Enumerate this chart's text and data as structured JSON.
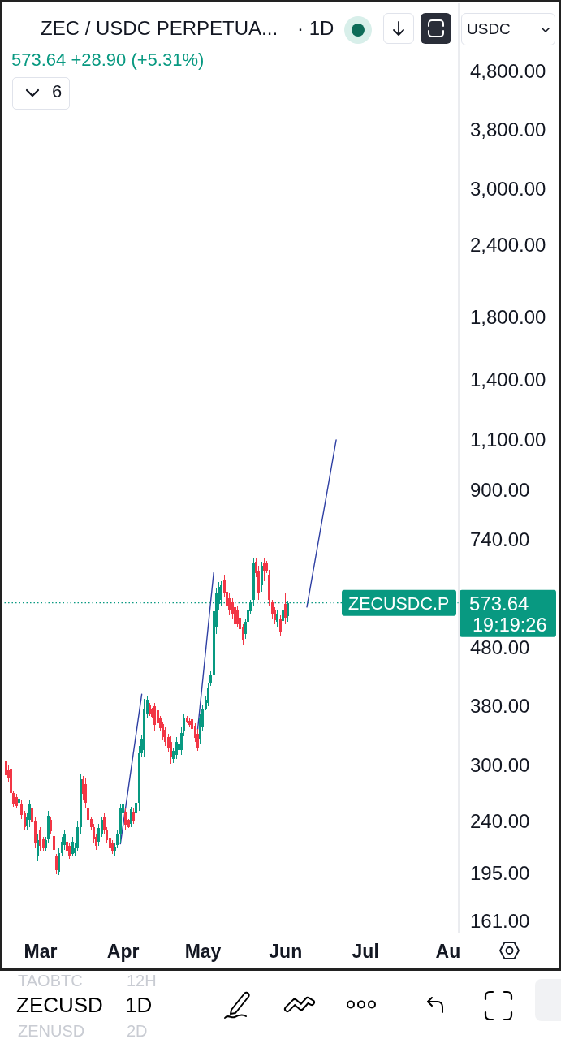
{
  "chart_data": {
    "type": "candlestick",
    "title": "ZEC / USDC PERPETUA...",
    "subtitle": "573.64 +28.90 (+5.31%)",
    "annotations": [
      "· 1D",
      "USDC",
      "6",
      "573.64",
      "19:19:26",
      "TAOBTC",
      "12H",
      "ZECUSD",
      "1D",
      "ZENUSD",
      "2D"
    ],
    "x": [
      "--02-16",
      "--02-17",
      "--02-18",
      "--02-19",
      "--02-20",
      "--02-21",
      "--02-22",
      "--02-23",
      "--02-24",
      "--02-25",
      "--02-26",
      "--02-27",
      "--02-28",
      "--03-01",
      "--03-02",
      "--03-03",
      "--03-04",
      "--03-05",
      "--03-06",
      "--03-07",
      "--03-08",
      "--03-09",
      "--03-10",
      "--03-11",
      "--03-12",
      "--03-13",
      "--03-14",
      "--03-15",
      "--03-16",
      "--03-17",
      "--03-18",
      "--03-19",
      "--03-20",
      "--03-21",
      "--03-22",
      "--03-23",
      "--03-24",
      "--03-25",
      "--03-26",
      "--03-27",
      "--03-28",
      "--03-29",
      "--03-30",
      "--03-31",
      "--04-01",
      "--04-02",
      "--04-03",
      "--04-04",
      "--04-05",
      "--04-06",
      "--04-07",
      "--04-08",
      "--04-09",
      "--04-10",
      "--04-11",
      "--04-12",
      "--04-13",
      "--04-14",
      "--04-15",
      "--04-16",
      "--04-17",
      "--04-18",
      "--04-19",
      "--04-20",
      "--04-21",
      "--04-22",
      "--04-23",
      "--04-24",
      "--04-25",
      "--04-26",
      "--04-27",
      "--04-28",
      "--04-29",
      "--04-30",
      "--05-01",
      "--05-02",
      "--05-03",
      "--05-04",
      "--05-05",
      "--05-06",
      "--05-07",
      "--05-08",
      "--05-09",
      "--05-10",
      "--05-11",
      "--05-12",
      "--05-13",
      "--05-14",
      "--05-15",
      "--05-16",
      "--05-17",
      "--05-18",
      "--05-19",
      "--05-20",
      "--05-21",
      "--05-22",
      "--05-23",
      "--05-24",
      "--05-25",
      "--05-26",
      "--05-27",
      "--05-28",
      "--05-29",
      "--05-30",
      "--05-31",
      "--06-01",
      "--06-02"
    ],
    "ohlc": [
      [
        304,
        311,
        282,
        288
      ],
      [
        294,
        299,
        280,
        285
      ],
      [
        296,
        304,
        264,
        268
      ],
      [
        268,
        271,
        254,
        257
      ],
      [
        264,
        267,
        253,
        255
      ],
      [
        258,
        264,
        256,
        262
      ],
      [
        257,
        261,
        242,
        246
      ],
      [
        247,
        250,
        231,
        234
      ],
      [
        235,
        248,
        232,
        244
      ],
      [
        241,
        261,
        234,
        256
      ],
      [
        253,
        257,
        234,
        239
      ],
      [
        240,
        244,
        215,
        220
      ],
      [
        209,
        227,
        204,
        222
      ],
      [
        231,
        234,
        213,
        217
      ],
      [
        223,
        225,
        213,
        215
      ],
      [
        215,
        225,
        213,
        222
      ],
      [
        223,
        250,
        220,
        245
      ],
      [
        241,
        244,
        227,
        230
      ],
      [
        226,
        229,
        210,
        214
      ],
      [
        208,
        210,
        194,
        197
      ],
      [
        196,
        215,
        193,
        211
      ],
      [
        211,
        225,
        208,
        221
      ],
      [
        218,
        231,
        214,
        227
      ],
      [
        221,
        223,
        210,
        213
      ],
      [
        217,
        220,
        206,
        209
      ],
      [
        210,
        225,
        208,
        221
      ],
      [
        211,
        220,
        209,
        215
      ],
      [
        215,
        240,
        213,
        234
      ],
      [
        234,
        289,
        228,
        283
      ],
      [
        283,
        287,
        261,
        267
      ],
      [
        278,
        285,
        253,
        258
      ],
      [
        253,
        256,
        237,
        241
      ],
      [
        242,
        244,
        232,
        234
      ],
      [
        234,
        237,
        220,
        223
      ],
      [
        225,
        227,
        214,
        217
      ],
      [
        221,
        237,
        217,
        233
      ],
      [
        228,
        244,
        225,
        241
      ],
      [
        244,
        248,
        227,
        231
      ],
      [
        231,
        234,
        220,
        222
      ],
      [
        224,
        227,
        213,
        215
      ],
      [
        220,
        222,
        210,
        213
      ],
      [
        212,
        220,
        209,
        216
      ],
      [
        218,
        232,
        215,
        228
      ],
      [
        227,
        257,
        220,
        252
      ],
      [
        248,
        258,
        244,
        256
      ],
      [
        249,
        253,
        232,
        236
      ],
      [
        241,
        242,
        233,
        234
      ],
      [
        237,
        254,
        234,
        251
      ],
      [
        249,
        252,
        237,
        240
      ],
      [
        248,
        261,
        246,
        258
      ],
      [
        258,
        324,
        250,
        314
      ],
      [
        314,
        338,
        309,
        333
      ],
      [
        319,
        391,
        309,
        375
      ],
      [
        369,
        394,
        363,
        389
      ],
      [
        381,
        384,
        365,
        369
      ],
      [
        374,
        377,
        361,
        364
      ],
      [
        379,
        385,
        344,
        352
      ],
      [
        373,
        379,
        349,
        355
      ],
      [
        362,
        365,
        344,
        348
      ],
      [
        353,
        357,
        331,
        336
      ],
      [
        345,
        349,
        324,
        329
      ],
      [
        335,
        340,
        316,
        321
      ],
      [
        329,
        337,
        301,
        309
      ],
      [
        307,
        322,
        302,
        317
      ],
      [
        312,
        335,
        307,
        329
      ],
      [
        318,
        331,
        314,
        327
      ],
      [
        319,
        349,
        312,
        341
      ],
      [
        343,
        367,
        337,
        361
      ],
      [
        363,
        365,
        354,
        356
      ],
      [
        358,
        361,
        349,
        352
      ],
      [
        360,
        363,
        343,
        346
      ],
      [
        350,
        355,
        329,
        334
      ],
      [
        340,
        346,
        317,
        322
      ],
      [
        333,
        369,
        327,
        361
      ],
      [
        349,
        381,
        344,
        374
      ],
      [
        376,
        394,
        373,
        389
      ],
      [
        385,
        416,
        379,
        409
      ],
      [
        416,
        437,
        411,
        431
      ],
      [
        431,
        568,
        416,
        554
      ],
      [
        519,
        610,
        506,
        597
      ],
      [
        572,
        624,
        557,
        612
      ],
      [
        581,
        626,
        568,
        616
      ],
      [
        630,
        641,
        587,
        597
      ],
      [
        600,
        614,
        554,
        566
      ],
      [
        585,
        595,
        545,
        557
      ],
      [
        575,
        585,
        539,
        548
      ],
      [
        563,
        575,
        514,
        527
      ],
      [
        559,
        568,
        519,
        527
      ],
      [
        541,
        550,
        510,
        517
      ],
      [
        519,
        527,
        486,
        494
      ],
      [
        506,
        539,
        497,
        531
      ],
      [
        532,
        568,
        524,
        559
      ],
      [
        554,
        581,
        548,
        574
      ],
      [
        581,
        688,
        568,
        673
      ],
      [
        675,
        684,
        635,
        645
      ],
      [
        651,
        666,
        581,
        595
      ],
      [
        616,
        677,
        600,
        666
      ],
      [
        673,
        684,
        626,
        651
      ],
      [
        673,
        679,
        647,
        653
      ],
      [
        641,
        655,
        568,
        581
      ],
      [
        574,
        581,
        539,
        548
      ],
      [
        557,
        563,
        527,
        536
      ],
      [
        531,
        557,
        522,
        550
      ],
      [
        538,
        545,
        502,
        510
      ],
      [
        534,
        568,
        527,
        559
      ],
      [
        572,
        595,
        527,
        541
      ],
      [
        544.74,
        577,
        531,
        573.64
      ]
    ],
    "colors": [
      "#f23645",
      "#f23645",
      "#f23645",
      "#f23645",
      "#f23645",
      "#089981",
      "#f23645",
      "#f23645",
      "#089981",
      "#089981",
      "#f23645",
      "#f23645",
      "#089981",
      "#f23645",
      "#f23645",
      "#089981",
      "#089981",
      "#f23645",
      "#f23645",
      "#f23645",
      "#089981",
      "#089981",
      "#089981",
      "#f23645",
      "#f23645",
      "#089981",
      "#089981",
      "#089981",
      "#089981",
      "#f23645",
      "#f23645",
      "#f23645",
      "#f23645",
      "#f23645",
      "#f23645",
      "#089981",
      "#089981",
      "#f23645",
      "#f23645",
      "#f23645",
      "#f23645",
      "#089981",
      "#089981",
      "#089981",
      "#089981",
      "#f23645",
      "#f23645",
      "#089981",
      "#f23645",
      "#089981",
      "#089981",
      "#089981",
      "#089981",
      "#089981",
      "#f23645",
      "#f23645",
      "#f23645",
      "#f23645",
      "#f23645",
      "#f23645",
      "#f23645",
      "#f23645",
      "#f23645",
      "#089981",
      "#089981",
      "#089981",
      "#089981",
      "#089981",
      "#f23645",
      "#f23645",
      "#f23645",
      "#f23645",
      "#f23645",
      "#089981",
      "#089981",
      "#089981",
      "#089981",
      "#089981",
      "#089981",
      "#089981",
      "#089981",
      "#089981",
      "#f23645",
      "#f23645",
      "#f23645",
      "#f23645",
      "#f23645",
      "#f23645",
      "#f23645",
      "#f23645",
      "#089981",
      "#089981",
      "#089981",
      "#089981",
      "#f23645",
      "#f23645",
      "#089981",
      "#f23645",
      "#f23645",
      "#f23645",
      "#f23645",
      "#f23645",
      "#089981",
      "#f23645",
      "#089981",
      "#f23645",
      "#089981"
    ],
    "series": [
      {
        "type": "line",
        "color": "#2e3fa3",
        "x": [
          "--03-31",
          "--04-08"
        ],
        "values": [
          219,
          398
        ]
      },
      {
        "type": "line",
        "color": "#2e3fa3",
        "x": [
          "--04-29",
          "--05-05"
        ],
        "values": [
          346,
          647
        ]
      },
      {
        "type": "line",
        "color": "#2e3fa3",
        "x": [
          "--06-09",
          "--06-20"
        ],
        "values": [
          564,
          1100
        ]
      }
    ],
    "ref_lines": [
      {
        "axis": "y",
        "value": 573.64,
        "label": "ZECUSDC.P",
        "color": "#089981",
        "line_style": "dotted"
      }
    ],
    "log": true,
    "xlim": [
      "--02-15",
      "--08-05"
    ],
    "xticks": [
      {
        "value": "--03-01",
        "label": "Mar"
      },
      {
        "value": "--04-01",
        "label": "Apr"
      },
      {
        "value": "--05-01",
        "label": "May"
      },
      {
        "value": "--06-01",
        "label": "Jun"
      },
      {
        "value": "--07-01",
        "label": "Jul"
      },
      {
        "value": "--08-01",
        "label": "Au"
      }
    ],
    "ylim": [
      153,
      6300
    ],
    "yticks": [
      {
        "value": 4800,
        "label": "4,800.00"
      },
      {
        "value": 3800,
        "label": "3,800.00"
      },
      {
        "value": 3000,
        "label": "3,000.00"
      },
      {
        "value": 2400,
        "label": "2,400.00"
      },
      {
        "value": 1800,
        "label": "1,800.00"
      },
      {
        "value": 1400,
        "label": "1,400.00"
      },
      {
        "value": 1100,
        "label": "1,100.00"
      },
      {
        "value": 900,
        "label": "900.00"
      },
      {
        "value": 740,
        "label": "740.00"
      },
      {
        "value": 480,
        "label": "480.00"
      },
      {
        "value": 380,
        "label": "380.00"
      },
      {
        "value": 300,
        "label": "300.00"
      },
      {
        "value": 240,
        "label": "240.00"
      },
      {
        "value": 195,
        "label": "195.00"
      },
      {
        "value": 161,
        "label": "161.00"
      }
    ]
  }
}
